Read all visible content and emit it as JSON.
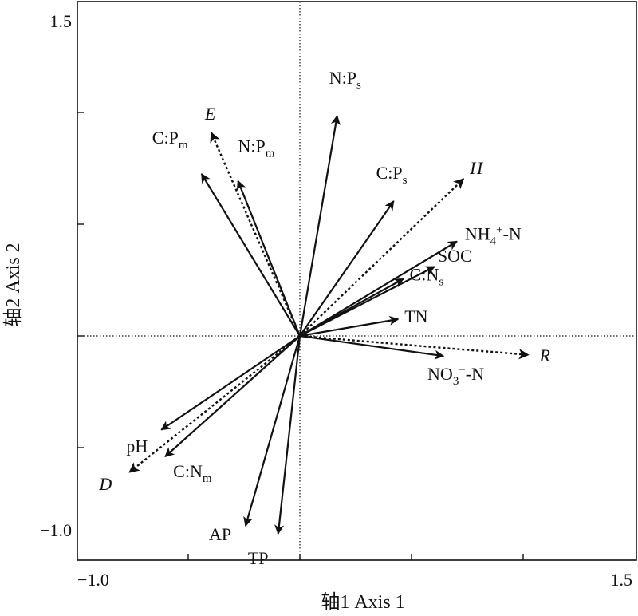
{
  "chart_data": {
    "type": "scatter",
    "xlabel": "轴1 Axis 1",
    "ylabel": "轴2 Axis 2",
    "xlim": [
      -1.0,
      1.5
    ],
    "ylim": [
      -1.0,
      1.5
    ],
    "x_ticks": [
      "−1.0",
      "1.5"
    ],
    "y_ticks": [
      "1.5",
      "−1.0"
    ],
    "grid": false,
    "zero_lines": true,
    "arrow_color": "#111111",
    "series": [
      {
        "style": "solid",
        "arrows": [
          {
            "label": "N:P",
            "sub": "s",
            "x": 0.167,
            "y": 0.985
          },
          {
            "label": "C:P",
            "sub": "m",
            "x": -0.44,
            "y": 0.725
          },
          {
            "label": "N:P",
            "sub": "m",
            "x": -0.277,
            "y": 0.694
          },
          {
            "label": "C:P",
            "sub": "s",
            "x": 0.42,
            "y": 0.603
          },
          {
            "label": "NH",
            "sub": "4",
            "sup": "+",
            "tail": "-N",
            "x": 0.703,
            "y": 0.423
          },
          {
            "label": "SOC",
            "x": 0.603,
            "y": 0.31
          },
          {
            "label": "C:N",
            "sub": "s",
            "x": 0.463,
            "y": 0.255
          },
          {
            "label": "TN",
            "x": 0.44,
            "y": 0.075
          },
          {
            "label": "NO",
            "sub": "3",
            "sup": "−",
            "tail": "-N",
            "x": 0.643,
            "y": -0.09
          },
          {
            "label": "pH",
            "x": -0.62,
            "y": -0.42
          },
          {
            "label": "C:N",
            "sub": "m",
            "x": -0.603,
            "y": -0.54
          },
          {
            "label": "AP",
            "x": -0.243,
            "y": -0.85
          },
          {
            "label": "TP",
            "x": -0.097,
            "y": -0.885
          }
        ]
      },
      {
        "style": "dotted",
        "arrows": [
          {
            "label": "E",
            "italic": true,
            "x": -0.397,
            "y": 0.91
          },
          {
            "label": "H",
            "italic": true,
            "x": 0.733,
            "y": 0.703
          },
          {
            "label": "R",
            "italic": true,
            "x": 1.023,
            "y": -0.085
          },
          {
            "label": "D",
            "italic": true,
            "x": -0.763,
            "y": -0.61
          }
        ]
      }
    ]
  }
}
